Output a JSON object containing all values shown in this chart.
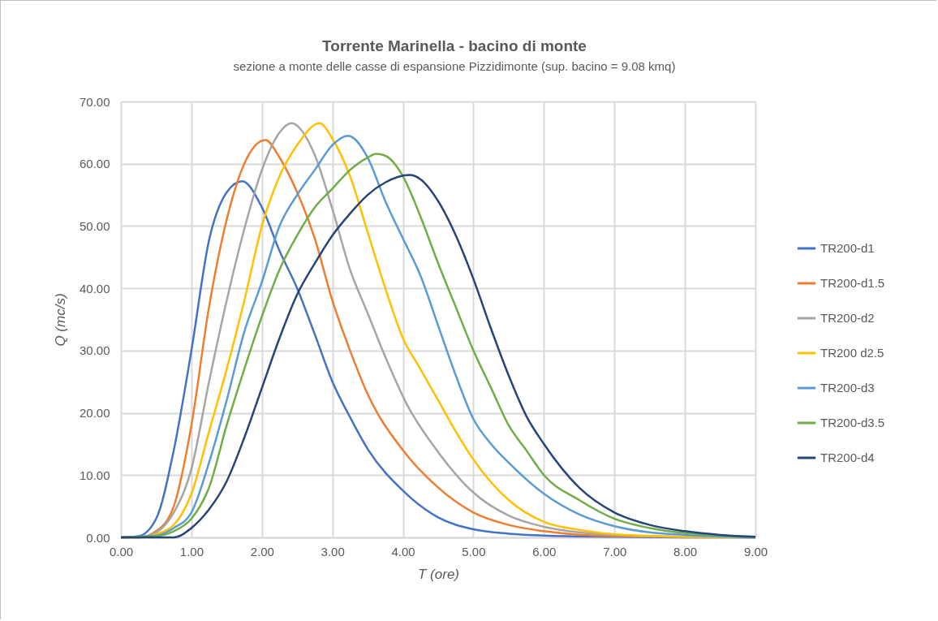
{
  "chart_data": {
    "type": "line",
    "title": "Torrente Marinella - bacino di monte",
    "subtitle": "sezione a monte delle casse di espansione Pizzidimonte (sup. bacino = 9.08 kmq)",
    "xlabel": "T (ore)",
    "ylabel": "Q (mc/s)",
    "xlim": [
      0,
      9
    ],
    "ylim": [
      0,
      70
    ],
    "xticks": [
      {
        "value": 0,
        "label": "0.00"
      },
      {
        "value": 1,
        "label": "1.00"
      },
      {
        "value": 2,
        "label": "2.00"
      },
      {
        "value": 3,
        "label": "3.00"
      },
      {
        "value": 4,
        "label": "4.00"
      },
      {
        "value": 5,
        "label": "5.00"
      },
      {
        "value": 6,
        "label": "6.00"
      },
      {
        "value": 7,
        "label": "7.00"
      },
      {
        "value": 8,
        "label": "8.00"
      },
      {
        "value": 9,
        "label": "9.00"
      }
    ],
    "yticks": [
      {
        "value": 0,
        "label": "0.00"
      },
      {
        "value": 10,
        "label": "10.00"
      },
      {
        "value": 20,
        "label": "20.00"
      },
      {
        "value": 30,
        "label": "30.00"
      },
      {
        "value": 40,
        "label": "40.00"
      },
      {
        "value": 50,
        "label": "50.00"
      },
      {
        "value": 60,
        "label": "60.00"
      },
      {
        "value": 70,
        "label": "70.00"
      }
    ],
    "grid": true,
    "legend": "right",
    "marker": "none",
    "line_style": "solid",
    "series": [
      {
        "name": "TR200-d1",
        "color": "#4472c4",
        "x": [
          0,
          0.25,
          0.5,
          0.75,
          1,
          1.25,
          1.5,
          1.72,
          2,
          2.25,
          2.5,
          2.75,
          3,
          3.25,
          3.5,
          4,
          4.5,
          5,
          5.5,
          6,
          7,
          8,
          9
        ],
        "values": [
          0,
          0.2,
          3,
          14,
          30,
          47.7,
          55.4,
          57.2,
          53,
          46,
          40,
          32.6,
          25,
          19.3,
          14.2,
          7.5,
          3.2,
          1.3,
          0.6,
          0.3,
          0.1,
          0,
          0
        ]
      },
      {
        "name": "TR200-d1.5",
        "color": "#ed7d31",
        "x": [
          0,
          0.25,
          0.5,
          0.75,
          1,
          1.25,
          1.5,
          1.75,
          2.05,
          2.25,
          2.5,
          2.75,
          3,
          3.25,
          3.5,
          4,
          4.5,
          5,
          5.5,
          6,
          7,
          8,
          9
        ],
        "values": [
          0,
          0,
          1,
          5,
          18,
          37,
          51,
          60,
          63.8,
          61,
          55.4,
          48,
          38,
          30,
          23,
          14,
          8,
          4,
          2,
          1,
          0.2,
          0.1,
          0
        ]
      },
      {
        "name": "TR200-d2",
        "color": "#a5a5a5",
        "x": [
          0,
          0.25,
          0.5,
          0.75,
          1,
          1.25,
          1.5,
          1.75,
          2,
          2.25,
          2.42,
          2.75,
          3,
          3.25,
          3.5,
          3.75,
          4.05,
          4.5,
          5,
          5.5,
          6,
          6.5,
          7,
          8,
          9
        ],
        "values": [
          0,
          0,
          0.8,
          4,
          11,
          25,
          38,
          49.5,
          59,
          65,
          66.5,
          61.4,
          52.7,
          43,
          36,
          29,
          21.5,
          13.7,
          7.2,
          3.5,
          1.7,
          0.8,
          0.4,
          0.1,
          0
        ]
      },
      {
        "name": "TR200 d2.5",
        "color": "#ffc000",
        "x": [
          0,
          0.25,
          0.5,
          0.75,
          1,
          1.25,
          1.5,
          1.75,
          2,
          2.25,
          2.5,
          2.82,
          3,
          3.25,
          3.5,
          3.75,
          4,
          4.25,
          4.5,
          4.75,
          5,
          5.5,
          6,
          6.5,
          7,
          8,
          9
        ],
        "values": [
          0,
          0,
          0.5,
          2,
          7,
          17,
          27,
          38,
          50,
          58,
          63,
          66.5,
          64,
          58,
          49,
          40,
          32,
          27,
          22,
          17,
          12.5,
          6,
          2.5,
          1.2,
          0.5,
          0.1,
          0
        ]
      },
      {
        "name": "TR200-d3",
        "color": "#5b9bd5",
        "x": [
          0,
          0.5,
          0.75,
          1,
          1.25,
          1.5,
          1.75,
          2,
          2.25,
          2.5,
          2.75,
          3,
          3.22,
          3.5,
          3.75,
          4,
          4.25,
          4.5,
          4.75,
          5,
          5.25,
          5.5,
          6,
          6.5,
          7,
          7.5,
          8,
          9
        ],
        "values": [
          0,
          0.3,
          1.5,
          4,
          12,
          22,
          33,
          41,
          50,
          55,
          59,
          63,
          64.5,
          61,
          54,
          48,
          42,
          34,
          26,
          19,
          15,
          12,
          7,
          3.7,
          1.8,
          0.8,
          0.4,
          0
        ]
      },
      {
        "name": "TR200-d3.5",
        "color": "#70ad47",
        "x": [
          0,
          0.5,
          0.75,
          1,
          1.25,
          1.5,
          1.75,
          2,
          2.25,
          2.5,
          2.75,
          3,
          3.25,
          3.5,
          3.62,
          3.75,
          4,
          4.25,
          4.5,
          4.75,
          5,
          5.25,
          5.5,
          5.75,
          6,
          6.5,
          7,
          7.5,
          8,
          8.5,
          9
        ],
        "values": [
          0,
          0.2,
          1,
          3,
          8,
          18,
          27,
          35.5,
          43,
          48.5,
          53,
          56,
          59,
          61,
          61.6,
          61.3,
          58,
          51.5,
          44,
          37,
          30,
          24,
          18,
          14,
          10,
          6,
          3,
          1.5,
          0.7,
          0.3,
          0.1
        ]
      },
      {
        "name": "TR200-d4",
        "color": "#264478",
        "x": [
          0,
          0.75,
          1,
          1.25,
          1.5,
          1.75,
          2,
          2.25,
          2.5,
          2.75,
          3,
          3.25,
          3.5,
          3.75,
          4.1,
          4.25,
          4.5,
          4.75,
          5,
          5.25,
          5.5,
          5.75,
          6,
          6.5,
          7,
          7.5,
          8,
          8.5,
          9
        ],
        "values": [
          0,
          0,
          1.5,
          4.5,
          9,
          16,
          24,
          32,
          39,
          44,
          48.5,
          52,
          55,
          57,
          58.2,
          57.5,
          54,
          48.5,
          41.5,
          33.5,
          26,
          19.5,
          15,
          8,
          4,
          2,
          1,
          0.4,
          0.1
        ]
      }
    ]
  }
}
